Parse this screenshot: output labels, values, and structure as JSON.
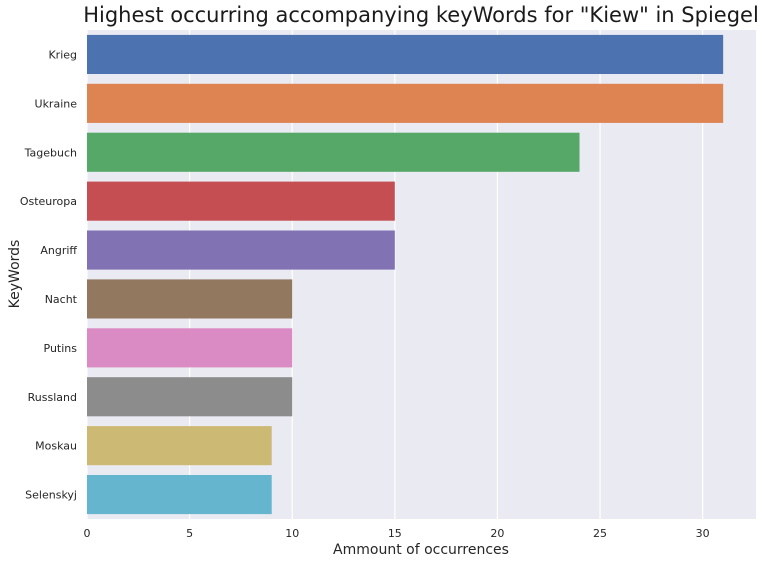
{
  "chart_data": {
    "type": "bar",
    "orientation": "horizontal",
    "title": "Highest occurring accompanying keyWords for \"Kiew\" in Spiegel",
    "xlabel": "Ammount of occurrences",
    "ylabel": "KeyWords",
    "categories": [
      "Krieg",
      "Ukraine",
      "Tagebuch",
      "Osteuropa",
      "Angriff",
      "Nacht",
      "Putins",
      "Russland",
      "Moskau",
      "Selenskyj"
    ],
    "values": [
      31,
      31,
      24,
      15,
      15,
      10,
      10,
      10,
      9,
      9
    ],
    "colors": [
      "#4c72b0",
      "#dd8452",
      "#55a868",
      "#c44e52",
      "#8172b3",
      "#937860",
      "#da8bc3",
      "#8c8c8c",
      "#ccb974",
      "#64b5cd"
    ],
    "xlim": [
      0,
      32.6
    ],
    "xticks": [
      0,
      5,
      10,
      15,
      20,
      25,
      30
    ],
    "grid": true,
    "background": "#eaeaf2"
  }
}
